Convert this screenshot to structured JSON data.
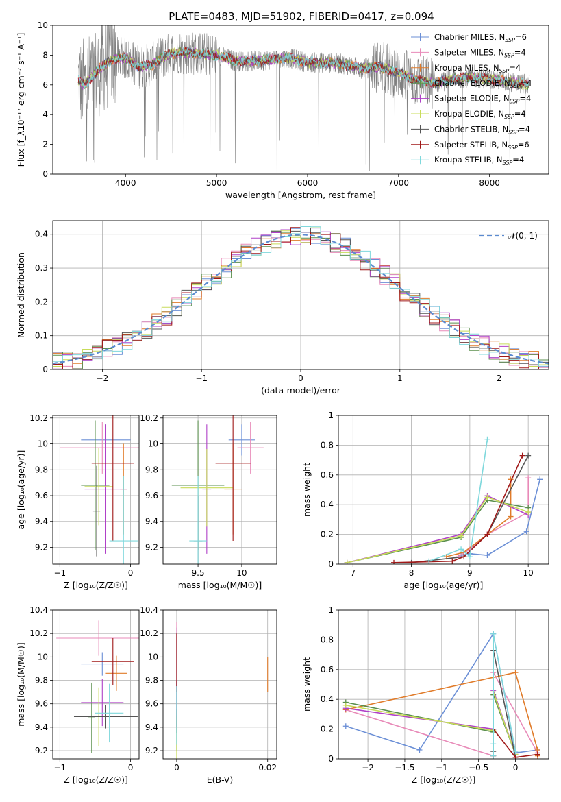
{
  "figure": {
    "title": "PLATE=0483, MJD=51902, FIBERID=0417, z=0.094"
  },
  "models": [
    {
      "name": "Chabrier MILES",
      "nssp": "6",
      "color": "#6b8fd6"
    },
    {
      "name": "Salpeter MILES",
      "nssp": "4",
      "color": "#e88ab8"
    },
    {
      "name": "Kroupa MILES",
      "nssp": "4",
      "color": "#e07b2a"
    },
    {
      "name": "Chabrier ELODIE",
      "nssp": "4",
      "color": "#5a8f4d"
    },
    {
      "name": "Salpeter ELODIE",
      "nssp": "4",
      "color": "#b040c8"
    },
    {
      "name": "Kroupa ELODIE",
      "nssp": "4",
      "color": "#c8dc5a"
    },
    {
      "name": "Chabrier STELIB",
      "nssp": "4",
      "color": "#555555"
    },
    {
      "name": "Salpeter STELIB",
      "nssp": "6",
      "color": "#a01818"
    },
    {
      "name": "Kroupa STELIB",
      "nssp": "4",
      "color": "#7fd8dc"
    }
  ],
  "chart_data": [
    {
      "id": "spectrum",
      "type": "line",
      "xlabel": "wavelength [Angstrom, rest frame]",
      "ylabel": "Flux [f_λ10⁻¹⁷ erg cm⁻² s⁻¹ A⁻¹]",
      "xlim": [
        3200,
        8650
      ],
      "ylim": [
        0,
        10
      ],
      "xticks": [
        4000,
        5000,
        6000,
        7000,
        8000
      ],
      "yticks": [
        0,
        2,
        4,
        6,
        8,
        10
      ],
      "data_color": "#808080",
      "continuum": {
        "x": [
          3480,
          3550,
          3700,
          3850,
          4000,
          4150,
          4300,
          4450,
          4600,
          4800,
          5000,
          5200,
          5400,
          5600,
          5800,
          6000,
          6200,
          6400,
          6600,
          6800,
          7000,
          7200,
          7400,
          7600,
          7800,
          8000,
          8200,
          8440
        ],
        "y": [
          6.3,
          6.0,
          7.0,
          7.7,
          7.8,
          7.2,
          7.4,
          8.0,
          8.2,
          8.1,
          8.0,
          7.6,
          7.6,
          7.7,
          7.8,
          7.5,
          7.5,
          7.4,
          7.1,
          7.2,
          6.8,
          6.3,
          6.1,
          6.4,
          6.5,
          6.4,
          6.2,
          6.0
        ]
      }
    },
    {
      "id": "residuals",
      "type": "line",
      "xlabel": "(data-model)/error",
      "ylabel": "Normed distribution",
      "xlim": [
        -2.5,
        2.5
      ],
      "ylim": [
        0,
        0.44
      ],
      "xticks": [
        -2,
        -1,
        0,
        1,
        2
      ],
      "yticks": [
        0.0,
        0.1,
        0.2,
        0.3,
        0.4
      ],
      "legend": "𝒩(0, 1)",
      "normal_color": "#5b8bd0",
      "bin_width": 0.1
    },
    {
      "id": "age-vs-z",
      "type": "scatter",
      "xlabel": "Z [log₁₀(Z/Z☉)]",
      "ylabel": "age  [log₁₀(age/yr)]",
      "xlim": [
        -1.1,
        0.12
      ],
      "ylim": [
        9.07,
        10.22
      ],
      "xticks": [
        -1,
        0
      ],
      "yticks": [
        9.2,
        9.4,
        9.6,
        9.8,
        10.0,
        10.2
      ],
      "points": [
        {
          "x": -0.35,
          "y": 10.03,
          "xerr": 0.35,
          "yerr": 0.12
        },
        {
          "x": -0.4,
          "y": 9.97,
          "xerr": 0.6,
          "yerr": 0.2
        },
        {
          "x": -0.1,
          "y": 9.65,
          "xerr": 0.05,
          "yerr": 0.35
        },
        {
          "x": -0.5,
          "y": 9.68,
          "xerr": 0.2,
          "yerr": 0.5
        },
        {
          "x": -0.35,
          "y": 9.65,
          "xerr": 0.3,
          "yerr": 0.5
        },
        {
          "x": -0.45,
          "y": 9.67,
          "xerr": 0.2,
          "yerr": 0.3
        },
        {
          "x": -0.48,
          "y": 9.48,
          "xerr": 0.05,
          "yerr": 0.35
        },
        {
          "x": -0.25,
          "y": 9.85,
          "xerr": 0.3,
          "yerr": 0.6
        },
        {
          "x": -0.1,
          "y": 9.25,
          "xerr": 0.2,
          "yerr": 0.5
        }
      ]
    },
    {
      "id": "age-vs-mass",
      "type": "scatter",
      "xlabel": "mass [log₁₀(M/M☉)]",
      "ylabel": "",
      "xlim": [
        9.1,
        10.4
      ],
      "ylim": [
        9.07,
        10.22
      ],
      "xticks": [
        9.5,
        10.0
      ],
      "yticks": [
        9.2,
        9.4,
        9.6,
        9.8,
        10.0,
        10.2
      ],
      "points": [
        {
          "x": 10.0,
          "y": 10.03,
          "xerr": 0.15,
          "yerr": 0.12
        },
        {
          "x": 10.1,
          "y": 9.97,
          "xerr": 0.15,
          "yerr": 0.2
        },
        {
          "x": 9.9,
          "y": 9.65,
          "xerr": 0.1,
          "yerr": 0.35
        },
        {
          "x": 9.5,
          "y": 9.68,
          "xerr": 0.3,
          "yerr": 0.5
        },
        {
          "x": 9.6,
          "y": 9.65,
          "xerr": 0.05,
          "yerr": 0.5
        },
        {
          "x": 9.6,
          "y": 9.66,
          "xerr": 0.3,
          "yerr": 0.3
        },
        {
          "x": 9.5,
          "y": 9.25,
          "xerr": 0.05,
          "yerr": 0.35
        },
        {
          "x": 9.9,
          "y": 9.85,
          "xerr": 0.2,
          "yerr": 0.6
        },
        {
          "x": 9.5,
          "y": 9.25,
          "xerr": 0.1,
          "yerr": 0.5
        }
      ]
    },
    {
      "id": "weight-vs-age",
      "type": "line",
      "xlabel": "age  [log₁₀(age/yr)]",
      "ylabel": "mass weight",
      "xlim": [
        6.75,
        10.35
      ],
      "ylim": [
        0,
        1
      ],
      "xticks": [
        7,
        8,
        9,
        10
      ],
      "yticks": [
        0.0,
        0.2,
        0.4,
        0.6,
        0.8,
        1.0
      ],
      "series": [
        {
          "x": [
            8.85,
            9.0,
            9.3,
            9.97,
            10.2
          ],
          "y": [
            0.06,
            0.07,
            0.06,
            0.22,
            0.57
          ]
        },
        {
          "x": [
            8.8,
            9.0,
            9.3,
            10.0,
            10.0
          ],
          "y": [
            0.05,
            0.1,
            0.2,
            0.35,
            0.58
          ]
        },
        {
          "x": [
            8.6,
            8.9,
            9.3,
            9.7,
            9.7
          ],
          "y": [
            0.05,
            0.08,
            0.2,
            0.32,
            0.57
          ]
        },
        {
          "x": [
            6.9,
            8.85,
            9.3,
            10.0
          ],
          "y": [
            0.01,
            0.18,
            0.43,
            0.38
          ]
        },
        {
          "x": [
            6.9,
            8.85,
            9.3,
            10.0
          ],
          "y": [
            0.01,
            0.2,
            0.46,
            0.33
          ]
        },
        {
          "x": [
            6.9,
            8.85,
            9.3,
            10.0
          ],
          "y": [
            0.01,
            0.19,
            0.45,
            0.35
          ]
        },
        {
          "x": [
            8.0,
            8.9,
            9.3,
            10.0
          ],
          "y": [
            0.01,
            0.05,
            0.2,
            0.73
          ]
        },
        {
          "x": [
            7.7,
            8.7,
            8.9,
            9.3,
            9.9
          ],
          "y": [
            0.01,
            0.02,
            0.05,
            0.2,
            0.73
          ]
        },
        {
          "x": [
            8.3,
            8.85,
            9.0,
            9.3
          ],
          "y": [
            0.02,
            0.1,
            0.05,
            0.84
          ]
        }
      ]
    },
    {
      "id": "mass-vs-z",
      "type": "scatter",
      "xlabel": "Z [log₁₀(Z/Z☉)]",
      "ylabel": "mass [log₁₀(M/M☉)]",
      "xlim": [
        -1.1,
        0.12
      ],
      "ylim": [
        9.13,
        10.4
      ],
      "xticks": [
        -1,
        0
      ],
      "yticks": [
        9.2,
        9.4,
        9.6,
        9.8,
        10.0,
        10.2,
        10.4
      ],
      "points": [
        {
          "x": -0.4,
          "y": 9.94,
          "xerr": 0.3,
          "yerr": 0.1
        },
        {
          "x": -0.45,
          "y": 10.16,
          "xerr": 0.6,
          "yerr": 0.15
        },
        {
          "x": -0.2,
          "y": 9.86,
          "xerr": 0.15,
          "yerr": 0.15
        },
        {
          "x": -0.55,
          "y": 9.48,
          "xerr": 0.05,
          "yerr": 0.3
        },
        {
          "x": -0.4,
          "y": 9.61,
          "xerr": 0.3,
          "yerr": 0.2
        },
        {
          "x": -0.45,
          "y": 9.49,
          "xerr": 0.3,
          "yerr": 0.25
        },
        {
          "x": -0.35,
          "y": 9.49,
          "xerr": 0.45,
          "yerr": 0.1
        },
        {
          "x": -0.25,
          "y": 9.96,
          "xerr": 0.3,
          "yerr": 0.2
        },
        {
          "x": -0.3,
          "y": 9.52,
          "xerr": 0.2,
          "yerr": 0.25
        }
      ]
    },
    {
      "id": "mass-vs-ebv",
      "type": "scatter",
      "xlabel": "E(B-V)",
      "ylabel": "",
      "xlim": [
        -0.003,
        0.022
      ],
      "ylim": [
        9.13,
        10.4
      ],
      "xticks": [
        0.0,
        0.02
      ],
      "yticks": [
        9.2,
        9.4,
        9.6,
        9.8,
        10.0,
        10.2,
        10.4
      ],
      "points": [
        {
          "x": 0.0,
          "y": 9.9,
          "xerr": 0.0,
          "yerr": 0.35
        },
        {
          "x": 0.0,
          "y": 10.0,
          "xerr": 0.0,
          "yerr": 0.3
        },
        {
          "x": 0.02,
          "y": 9.85,
          "xerr": 0.0,
          "yerr": 0.15
        },
        {
          "x": 0.0,
          "y": 9.5,
          "xerr": 0.0,
          "yerr": 0.3
        },
        {
          "x": 0.0,
          "y": 9.6,
          "xerr": 0.0,
          "yerr": 0.2
        },
        {
          "x": 0.0,
          "y": 9.3,
          "xerr": 0.0,
          "yerr": 0.2
        },
        {
          "x": 0.0,
          "y": 9.45,
          "xerr": 0.0,
          "yerr": 0.1
        },
        {
          "x": 0.0,
          "y": 9.95,
          "xerr": 0.0,
          "yerr": 0.25
        },
        {
          "x": 0.0,
          "y": 9.5,
          "xerr": 0.0,
          "yerr": 0.25
        }
      ]
    },
    {
      "id": "weight-vs-z",
      "type": "line",
      "xlabel": "Z [log₁₀(Z/Z☉)]",
      "ylabel": "mass weight",
      "xlim": [
        -2.4,
        0.45
      ],
      "ylim": [
        0,
        1
      ],
      "xticks": [
        -2.0,
        -1.5,
        -1.0,
        -0.5,
        0.0
      ],
      "yticks": [
        0.0,
        0.2,
        0.4,
        0.6,
        0.8,
        1.0
      ],
      "series": [
        {
          "x": [
            -2.3,
            -1.3,
            -0.3,
            0.0,
            0.3
          ],
          "y": [
            0.22,
            0.06,
            0.84,
            0.04,
            0.06
          ]
        },
        {
          "x": [
            -2.3,
            -0.3,
            -0.3,
            0.3,
            0.3
          ],
          "y": [
            0.33,
            0.02,
            0.58,
            0.04,
            0.06
          ]
        },
        {
          "x": [
            -2.3,
            0.0,
            0.3,
            0.3
          ],
          "y": [
            0.33,
            0.58,
            0.06,
            0.02
          ]
        },
        {
          "x": [
            -2.3,
            -0.3,
            -0.3,
            0.0
          ],
          "y": [
            0.38,
            0.18,
            0.43,
            0.03
          ]
        },
        {
          "x": [
            -2.3,
            -0.3,
            -0.3,
            0.0
          ],
          "y": [
            0.34,
            0.2,
            0.46,
            0.03
          ]
        },
        {
          "x": [
            -2.3,
            -0.3,
            -0.3,
            0.0
          ],
          "y": [
            0.36,
            0.19,
            0.45,
            0.03
          ]
        },
        {
          "x": [
            -0.3,
            -0.3,
            -0.3,
            0.0
          ],
          "y": [
            0.05,
            0.2,
            0.73,
            0.01
          ]
        },
        {
          "x": [
            -0.3,
            -0.3,
            0.0,
            0.3
          ],
          "y": [
            0.02,
            0.2,
            0.01,
            0.03
          ]
        },
        {
          "x": [
            -0.3,
            -0.3,
            -0.3,
            0.0
          ],
          "y": [
            0.02,
            0.1,
            0.84,
            0.05
          ]
        }
      ]
    }
  ]
}
